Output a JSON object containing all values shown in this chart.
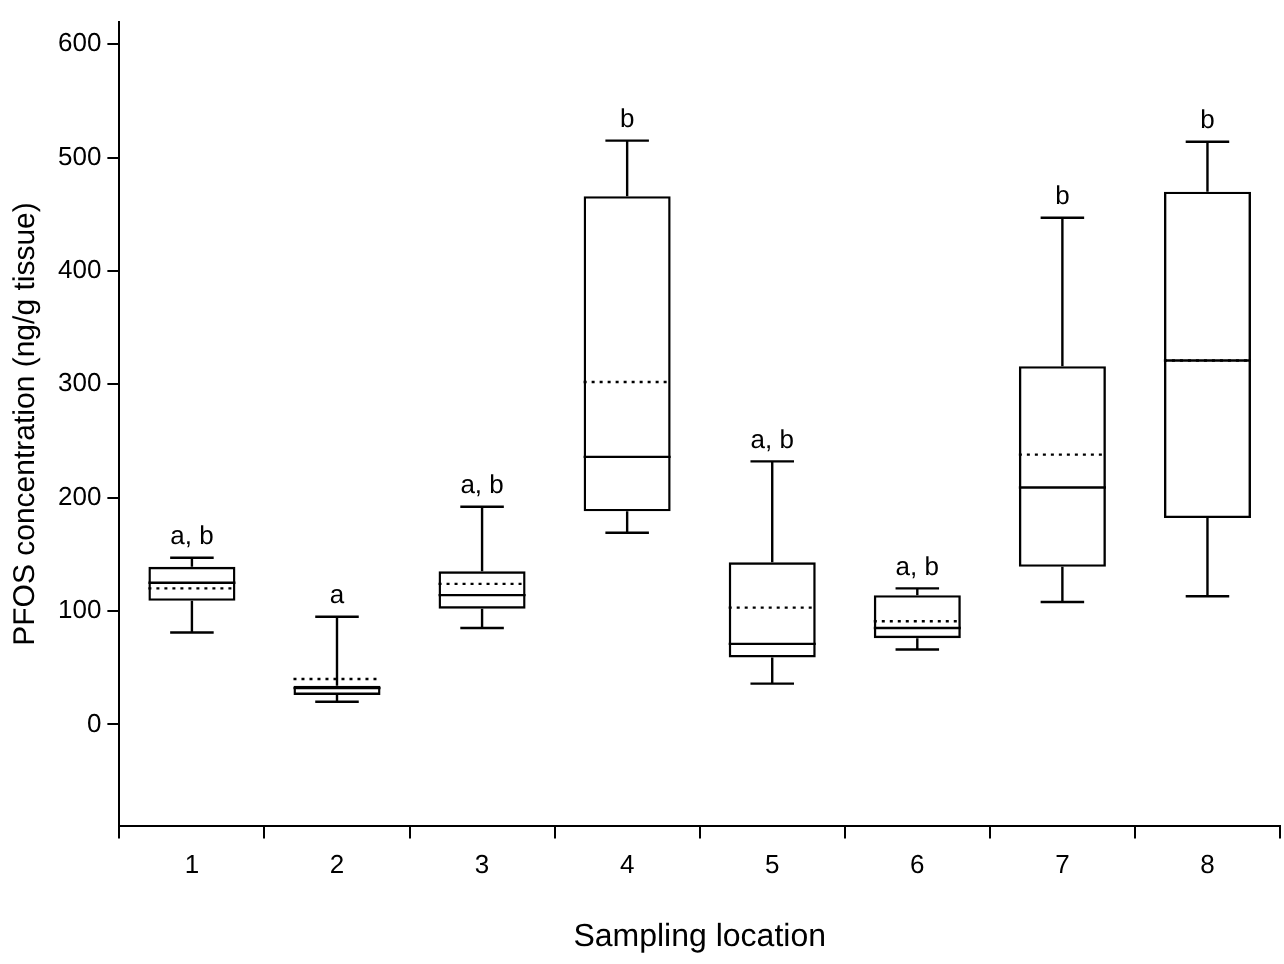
{
  "chart_data": {
    "type": "box",
    "xlabel": "Sampling location",
    "ylabel": "PFOS concentration (ng/g tissue)",
    "categories": [
      "1",
      "2",
      "3",
      "4",
      "5",
      "6",
      "7",
      "8"
    ],
    "ylim": [
      -90,
      620
    ],
    "yticks": [
      0,
      100,
      200,
      300,
      400,
      500,
      600
    ],
    "series": [
      {
        "color": "#000000",
        "boxes": [
          {
            "low": 81,
            "q1": 109,
            "median": 125,
            "q3": 139,
            "high": 147,
            "mean": 120
          },
          {
            "low": 20,
            "q1": 26,
            "median": 32,
            "q3": 34,
            "high": 95,
            "mean": 40
          },
          {
            "low": 85,
            "q1": 102,
            "median": 114,
            "q3": 135,
            "high": 192,
            "mean": 124
          },
          {
            "low": 169,
            "q1": 188,
            "median": 236,
            "q3": 466,
            "high": 515,
            "mean": 302
          },
          {
            "low": 36,
            "q1": 59,
            "median": 71,
            "q3": 143,
            "high": 232,
            "mean": 103
          },
          {
            "low": 66,
            "q1": 76,
            "median": 85,
            "q3": 114,
            "high": 120,
            "mean": 91
          },
          {
            "low": 108,
            "q1": 139,
            "median": 209,
            "q3": 316,
            "high": 447,
            "mean": 238
          },
          {
            "low": 113,
            "q1": 182,
            "median": 321,
            "q3": 470,
            "high": 514,
            "mean": 321
          }
        ]
      }
    ],
    "annotations": [
      {
        "text": "a, b",
        "x": "1",
        "y": 147
      },
      {
        "text": "a",
        "x": "2",
        "y": 95
      },
      {
        "text": "a, b",
        "x": "3",
        "y": 192
      },
      {
        "text": "b",
        "x": "4",
        "y": 515
      },
      {
        "text": "a, b",
        "x": "5",
        "y": 232
      },
      {
        "text": "a, b",
        "x": "6",
        "y": 120
      },
      {
        "text": "b",
        "x": "7",
        "y": 447
      },
      {
        "text": "b",
        "x": "8",
        "y": 514
      }
    ]
  }
}
